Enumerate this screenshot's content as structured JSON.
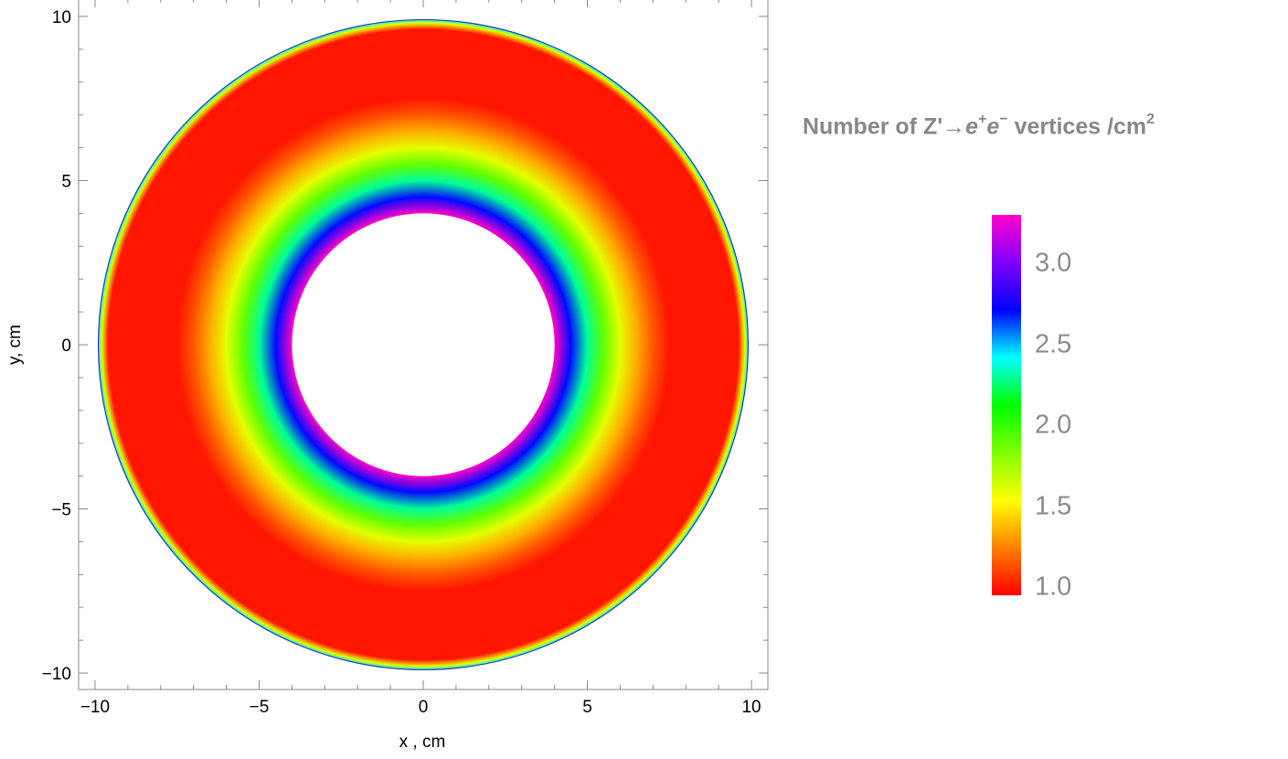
{
  "chart_data": {
    "type": "heatmap",
    "plot_kind": "annular density plot",
    "xlabel": "x , cm",
    "ylabel": "y, cm",
    "xlim": [
      -10.5,
      10.5
    ],
    "ylim": [
      -10.5,
      10.5
    ],
    "x_ticks": [
      "−10",
      "−5",
      "0",
      "5",
      "10"
    ],
    "y_ticks": [
      "−10",
      "−5",
      "0",
      "5",
      "10"
    ],
    "x_tick_values": [
      -10,
      -5,
      0,
      5,
      10
    ],
    "y_tick_values": [
      -10,
      -5,
      0,
      5,
      10
    ],
    "inner_radius_cm": 4,
    "outer_radius_cm": 9.9,
    "radial_profile": {
      "r_cm": [
        4.0,
        4.5,
        5.0,
        5.5,
        6.0,
        6.5,
        7.0,
        7.5,
        8.0,
        9.6,
        9.8,
        9.9
      ],
      "value": [
        3.3,
        2.7,
        2.3,
        1.9,
        1.6,
        1.35,
        1.15,
        1.0,
        1.0,
        1.0,
        1.6,
        2.4
      ]
    },
    "colorbar": {
      "title_parts": {
        "prefix": "Number of Z'→",
        "e1": "e",
        "sup1": "+",
        "e2": "e",
        "sup2": "−",
        "suffix": " vertices /cm",
        "sup3": "2"
      },
      "range": [
        0.95,
        3.3
      ],
      "tick_values": [
        1.0,
        1.5,
        2.0,
        2.5,
        3.0
      ],
      "tick_labels": [
        "1.0",
        "1.5",
        "2.0",
        "2.5",
        "3.0"
      ],
      "colormap": "rainbow: red → orange → yellow → green → cyan → blue → purple → magenta",
      "colors": [
        "#ff0000",
        "#ff8000",
        "#ffff00",
        "#80ff00",
        "#00ff00",
        "#00ffff",
        "#0000ff",
        "#8000ff",
        "#ff00c8"
      ]
    },
    "grid": false,
    "frame_color": "#888888"
  }
}
